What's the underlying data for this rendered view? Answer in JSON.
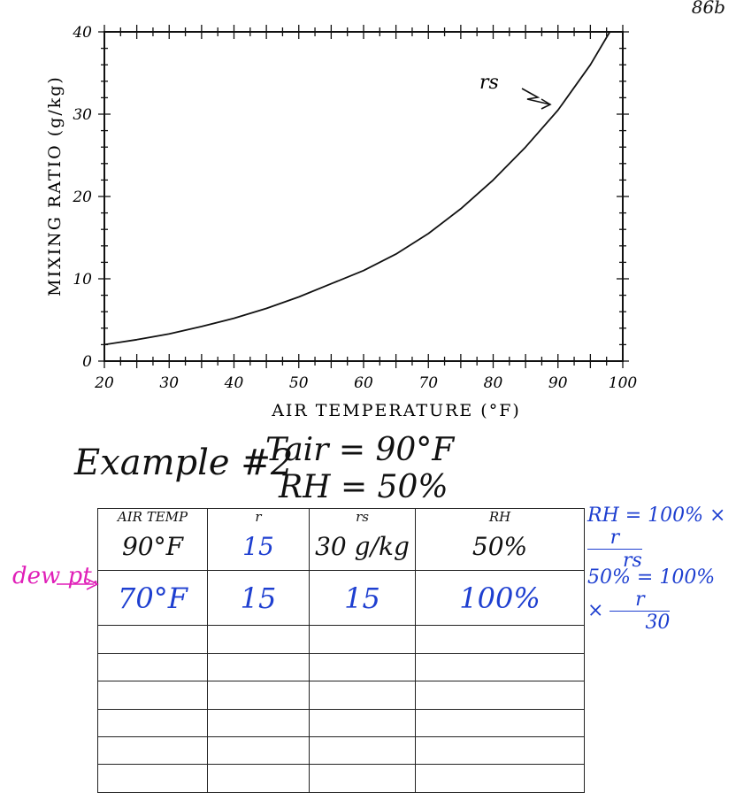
{
  "page_number": "86b",
  "chart_data": {
    "type": "line",
    "xlabel": "AIR TEMPERATURE (°F)",
    "ylabel": "MIXING RATIO (g/kg)",
    "xlim": [
      20,
      100
    ],
    "ylim": [
      0,
      40
    ],
    "x_ticks": [
      "20",
      "30",
      "40",
      "50",
      "60",
      "70",
      "80",
      "90",
      "100"
    ],
    "y_ticks": [
      "0",
      "10",
      "20",
      "30",
      "40"
    ],
    "grid": false,
    "series": [
      {
        "name": "rs",
        "x": [
          20,
          25,
          30,
          35,
          40,
          45,
          50,
          55,
          60,
          65,
          70,
          75,
          80,
          85,
          90,
          95,
          98
        ],
        "y": [
          2,
          2.6,
          3.3,
          4.2,
          5.2,
          6.4,
          7.8,
          9.4,
          11,
          13,
          15.5,
          18.5,
          22,
          26,
          30.5,
          36,
          40
        ]
      }
    ],
    "annotation": "rs"
  },
  "example": {
    "title": "Example #2",
    "tair": "Tair = 90°F",
    "rh": "RH = 50%"
  },
  "table": {
    "headers": [
      "AIR TEMP",
      "r",
      "rs",
      "RH"
    ],
    "rows": [
      [
        "90°F",
        "15",
        "30 g/kg",
        "50%"
      ],
      [
        "70°F",
        "15",
        "15",
        "100%"
      ]
    ],
    "empty_rows": 6
  },
  "dew_label": "dew pt.",
  "formulas": {
    "f1_left": "RH = 100% ×",
    "f1_num": "r",
    "f1_den": "rs",
    "f2_left": "50% = 100% ×",
    "f2_num": "r",
    "f2_den": "30"
  },
  "colors": {
    "ink": "#111111",
    "blue_ink": "#1e3fd0",
    "magenta_ink": "#e01fb8"
  }
}
